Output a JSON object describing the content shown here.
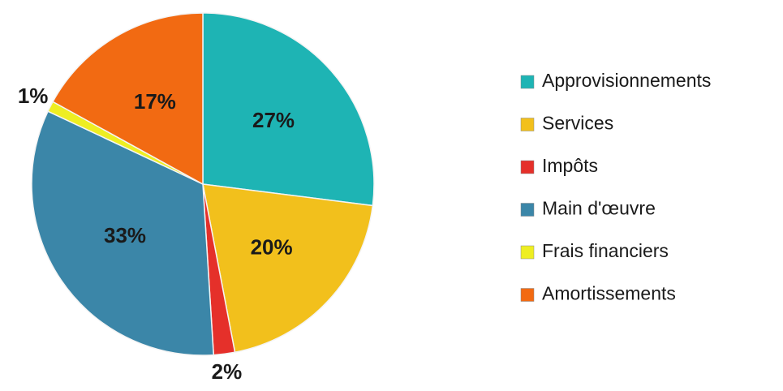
{
  "chart_data": {
    "type": "pie",
    "categories": [
      "Approvisionnements",
      "Services",
      "Impôts",
      "Main d'œuvre",
      "Frais financiers",
      "Amortissements"
    ],
    "values": [
      27,
      20,
      2,
      33,
      1,
      17
    ],
    "value_labels": [
      "27%",
      "20%",
      "2%",
      "33%",
      "1%",
      "17%"
    ],
    "colors": [
      "#1eb4b4",
      "#f2c01c",
      "#e5302a",
      "#3b86a8",
      "#eeee22",
      "#f26a12"
    ],
    "legend": "right"
  }
}
